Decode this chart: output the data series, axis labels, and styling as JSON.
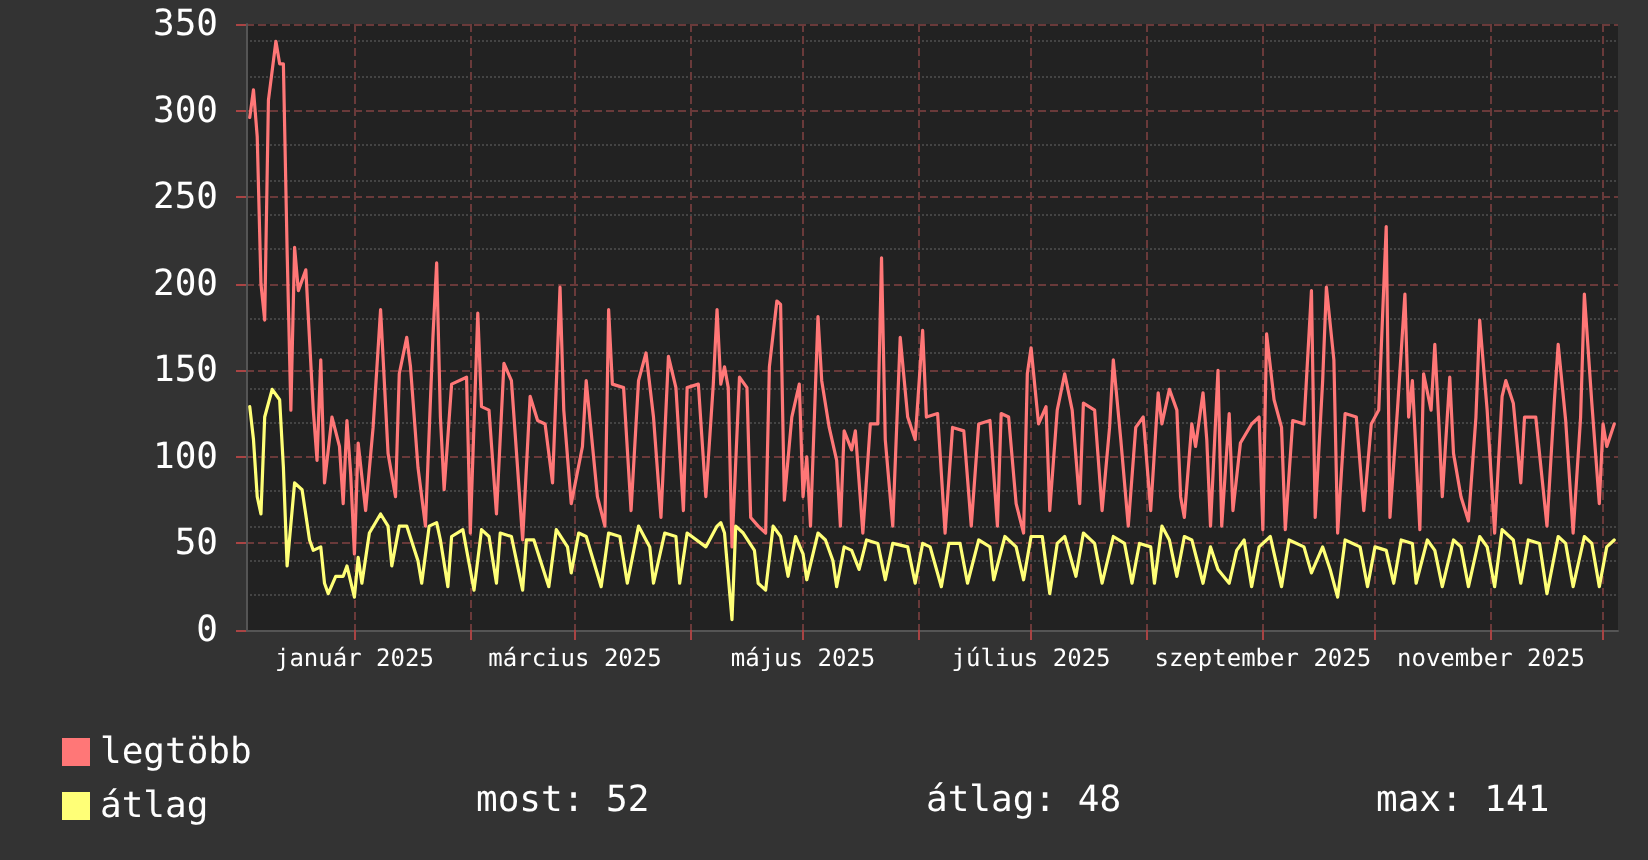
{
  "chart_data": {
    "type": "line",
    "xlim": [
      "2024-12-03",
      "2025-12-05"
    ],
    "xticks": [
      {
        "value": "2025-01-01",
        "label": "január 2025"
      },
      {
        "value": "2025-02-01",
        "label": null
      },
      {
        "value": "2025-03-01",
        "label": "március 2025"
      },
      {
        "value": "2025-04-01",
        "label": null
      },
      {
        "value": "2025-05-01",
        "label": "május 2025"
      },
      {
        "value": "2025-06-01",
        "label": null
      },
      {
        "value": "2025-07-01",
        "label": "július 2025"
      },
      {
        "value": "2025-08-01",
        "label": null
      },
      {
        "value": "2025-09-01",
        "label": "szeptember 2025"
      },
      {
        "value": "2025-10-01",
        "label": null
      },
      {
        "value": "2025-11-01",
        "label": "november 2025"
      },
      {
        "value": "2025-12-01",
        "label": null
      }
    ],
    "ylim": [
      0,
      350
    ],
    "yticks": [
      0,
      50,
      100,
      150,
      200,
      250,
      300,
      350
    ],
    "grid": true,
    "legend": "bottom left",
    "marker": "none",
    "line_style": "solid",
    "annotations": [
      "most: 52",
      "átlag: 48",
      "max: 141"
    ],
    "series": [
      {
        "name": "legtöbb",
        "color": "#ff7777",
        "x": [
          "2024-12-04",
          "2024-12-05",
          "2024-12-06",
          "2024-12-07",
          "2024-12-08",
          "2024-12-09",
          "2024-12-11",
          "2024-12-12",
          "2024-12-13",
          "2024-12-14",
          "2024-12-15",
          "2024-12-16",
          "2024-12-17",
          "2024-12-19",
          "2024-12-21",
          "2024-12-22",
          "2024-12-23",
          "2024-12-24",
          "2024-12-26",
          "2024-12-28",
          "2024-12-29",
          "2024-12-30",
          "2024-12-31",
          "2025-01-01",
          "2025-01-02",
          "2025-01-04",
          "2025-01-06",
          "2025-01-08",
          "2025-01-10",
          "2025-01-12",
          "2025-01-13",
          "2025-01-15",
          "2025-01-16",
          "2025-01-18",
          "2025-01-20",
          "2025-01-22",
          "2025-01-23",
          "2025-01-24",
          "2025-01-25",
          "2025-01-27",
          "2025-01-31",
          "2025-02-01",
          "2025-02-03",
          "2025-02-04",
          "2025-02-06",
          "2025-02-08",
          "2025-02-10",
          "2025-02-12",
          "2025-02-15",
          "2025-02-17",
          "2025-02-19",
          "2025-02-21",
          "2025-02-23",
          "2025-02-25",
          "2025-02-26",
          "2025-02-28",
          "2025-03-03",
          "2025-03-04",
          "2025-03-07",
          "2025-03-09",
          "2025-03-10",
          "2025-03-11",
          "2025-03-14",
          "2025-03-16",
          "2025-03-18",
          "2025-03-20",
          "2025-03-22",
          "2025-03-24",
          "2025-03-26",
          "2025-03-28",
          "2025-03-30",
          "2025-03-31",
          "2025-04-03",
          "2025-04-05",
          "2025-04-07",
          "2025-04-08",
          "2025-04-09",
          "2025-04-10",
          "2025-04-11",
          "2025-04-12",
          "2025-04-14",
          "2025-04-16",
          "2025-04-17",
          "2025-04-19",
          "2025-04-21",
          "2025-04-22",
          "2025-04-24",
          "2025-04-25",
          "2025-04-26",
          "2025-04-28",
          "2025-04-30",
          "2025-05-01",
          "2025-05-02",
          "2025-05-03",
          "2025-05-05",
          "2025-05-06",
          "2025-05-08",
          "2025-05-10",
          "2025-05-11",
          "2025-05-12",
          "2025-05-14",
          "2025-05-15",
          "2025-05-17",
          "2025-05-19",
          "2025-05-21",
          "2025-05-22",
          "2025-05-23",
          "2025-05-25",
          "2025-05-27",
          "2025-05-29",
          "2025-05-31",
          "2025-06-02",
          "2025-06-03",
          "2025-06-06",
          "2025-06-08",
          "2025-06-10",
          "2025-06-13",
          "2025-06-15",
          "2025-06-17",
          "2025-06-20",
          "2025-06-22",
          "2025-06-23",
          "2025-06-25",
          "2025-06-27",
          "2025-06-29",
          "2025-06-30",
          "2025-07-01",
          "2025-07-03",
          "2025-07-05",
          "2025-07-06",
          "2025-07-08",
          "2025-07-10",
          "2025-07-12",
          "2025-07-14",
          "2025-07-15",
          "2025-07-18",
          "2025-07-20",
          "2025-07-22",
          "2025-07-23",
          "2025-07-25",
          "2025-07-27",
          "2025-07-29",
          "2025-07-31",
          "2025-08-02",
          "2025-08-04",
          "2025-08-05",
          "2025-08-07",
          "2025-08-09",
          "2025-08-10",
          "2025-08-11",
          "2025-08-13",
          "2025-08-14",
          "2025-08-16",
          "2025-08-17",
          "2025-08-18",
          "2025-08-20",
          "2025-08-21",
          "2025-08-23",
          "2025-08-24",
          "2025-08-26",
          "2025-08-29",
          "2025-08-31",
          "2025-09-01",
          "2025-09-02",
          "2025-09-04",
          "2025-09-06",
          "2025-09-07",
          "2025-09-09",
          "2025-09-12",
          "2025-09-14",
          "2025-09-15",
          "2025-09-17",
          "2025-09-18",
          "2025-09-20",
          "2025-09-21",
          "2025-09-23",
          "2025-09-26",
          "2025-09-28",
          "2025-09-30",
          "2025-10-02",
          "2025-10-04",
          "2025-10-05",
          "2025-10-07",
          "2025-10-09",
          "2025-10-10",
          "2025-10-11",
          "2025-10-13",
          "2025-10-14",
          "2025-10-16",
          "2025-10-17",
          "2025-10-18",
          "2025-10-19",
          "2025-10-21",
          "2025-10-22",
          "2025-10-24",
          "2025-10-26",
          "2025-10-28",
          "2025-10-29",
          "2025-10-31",
          "2025-11-02",
          "2025-11-04",
          "2025-11-05",
          "2025-11-07",
          "2025-11-09",
          "2025-11-10",
          "2025-11-13",
          "2025-11-15",
          "2025-11-16",
          "2025-11-18",
          "2025-11-19",
          "2025-11-21",
          "2025-11-23",
          "2025-11-25",
          "2025-11-26",
          "2025-11-28",
          "2025-11-30",
          "2025-12-01",
          "2025-12-02",
          "2025-12-04"
        ],
        "values": [
          296,
          312,
          285,
          200,
          179,
          306,
          340,
          327,
          327,
          219,
          127,
          221,
          196,
          208,
          127,
          98,
          156,
          85,
          123,
          106,
          73,
          121,
          90,
          44,
          108,
          69,
          117,
          185,
          102,
          77,
          148,
          169,
          152,
          94,
          60,
          169,
          212,
          123,
          81,
          142,
          146,
          56,
          183,
          129,
          127,
          67,
          154,
          144,
          52,
          135,
          121,
          119,
          85,
          198,
          127,
          73,
          106,
          144,
          77,
          60,
          185,
          142,
          140,
          69,
          144,
          160,
          123,
          65,
          158,
          140,
          69,
          140,
          142,
          77,
          142,
          185,
          142,
          152,
          140,
          48,
          146,
          140,
          65,
          60,
          56,
          152,
          190,
          188,
          75,
          123,
          142,
          77,
          100,
          60,
          181,
          144,
          117,
          98,
          60,
          115,
          104,
          115,
          56,
          119,
          119,
          215,
          110,
          60,
          169,
          123,
          110,
          173,
          123,
          125,
          56,
          117,
          115,
          60,
          119,
          121,
          60,
          125,
          123,
          73,
          56,
          148,
          163,
          119,
          129,
          69,
          127,
          148,
          127,
          73,
          131,
          127,
          69,
          117,
          156,
          110,
          60,
          117,
          123,
          69,
          137,
          119,
          139,
          127,
          77,
          65,
          119,
          106,
          137,
          110,
          60,
          150,
          60,
          125,
          69,
          108,
          119,
          123,
          58,
          171,
          133,
          117,
          58,
          121,
          119,
          196,
          65,
          144,
          198,
          156,
          56,
          125,
          123,
          69,
          119,
          127,
          233,
          65,
          127,
          194,
          123,
          144,
          58,
          148,
          127,
          165,
          123,
          77,
          146,
          102,
          77,
          63,
          123,
          179,
          127,
          56,
          135,
          144,
          131,
          85,
          123,
          123,
          81,
          60,
          133,
          165,
          121,
          56,
          123,
          194,
          131,
          73,
          119,
          106,
          119
        ]
      },
      {
        "name": "átlag",
        "color": "#ffff77",
        "x": [
          "2024-12-04",
          "2024-12-05",
          "2024-12-06",
          "2024-12-07",
          "2024-12-08",
          "2024-12-10",
          "2024-12-12",
          "2024-12-13",
          "2024-12-14",
          "2024-12-16",
          "2024-12-18",
          "2024-12-20",
          "2024-12-21",
          "2024-12-23",
          "2024-12-24",
          "2024-12-25",
          "2024-12-27",
          "2024-12-29",
          "2024-12-30",
          "2025-01-01",
          "2025-01-02",
          "2025-01-03",
          "2025-01-05",
          "2025-01-08",
          "2025-01-10",
          "2025-01-11",
          "2025-01-13",
          "2025-01-15",
          "2025-01-18",
          "2025-01-19",
          "2025-01-21",
          "2025-01-23",
          "2025-01-24",
          "2025-01-26",
          "2025-01-27",
          "2025-01-30",
          "2025-02-02",
          "2025-02-04",
          "2025-02-06",
          "2025-02-08",
          "2025-02-09",
          "2025-02-12",
          "2025-02-15",
          "2025-02-16",
          "2025-02-18",
          "2025-02-22",
          "2025-02-24",
          "2025-02-27",
          "2025-02-28",
          "2025-03-02",
          "2025-03-04",
          "2025-03-08",
          "2025-03-10",
          "2025-03-13",
          "2025-03-15",
          "2025-03-18",
          "2025-03-21",
          "2025-03-22",
          "2025-03-25",
          "2025-03-28",
          "2025-03-29",
          "2025-03-31",
          "2025-04-05",
          "2025-04-08",
          "2025-04-09",
          "2025-04-10",
          "2025-04-12",
          "2025-04-13",
          "2025-04-15",
          "2025-04-18",
          "2025-04-19",
          "2025-04-21",
          "2025-04-23",
          "2025-04-25",
          "2025-04-27",
          "2025-04-29",
          "2025-05-01",
          "2025-05-02",
          "2025-05-05",
          "2025-05-07",
          "2025-05-09",
          "2025-05-10",
          "2025-05-12",
          "2025-05-14",
          "2025-05-16",
          "2025-05-18",
          "2025-05-21",
          "2025-05-23",
          "2025-05-25",
          "2025-05-29",
          "2025-05-31",
          "2025-06-02",
          "2025-06-04",
          "2025-06-07",
          "2025-06-09",
          "2025-06-12",
          "2025-06-14",
          "2025-06-17",
          "2025-06-20",
          "2025-06-21",
          "2025-06-24",
          "2025-06-27",
          "2025-06-29",
          "2025-07-01",
          "2025-07-04",
          "2025-07-06",
          "2025-07-08",
          "2025-07-10",
          "2025-07-13",
          "2025-07-15",
          "2025-07-18",
          "2025-07-20",
          "2025-07-23",
          "2025-07-26",
          "2025-07-28",
          "2025-07-30",
          "2025-08-02",
          "2025-08-03",
          "2025-08-05",
          "2025-08-07",
          "2025-08-09",
          "2025-08-11",
          "2025-08-13",
          "2025-08-16",
          "2025-08-18",
          "2025-08-20",
          "2025-08-23",
          "2025-08-25",
          "2025-08-27",
          "2025-08-29",
          "2025-08-31",
          "2025-09-03",
          "2025-09-06",
          "2025-09-08",
          "2025-09-12",
          "2025-09-14",
          "2025-09-17",
          "2025-09-19",
          "2025-09-21",
          "2025-09-23",
          "2025-09-27",
          "2025-09-29",
          "2025-10-01",
          "2025-10-04",
          "2025-10-06",
          "2025-10-08",
          "2025-10-11",
          "2025-10-12",
          "2025-10-15",
          "2025-10-17",
          "2025-10-19",
          "2025-10-22",
          "2025-10-24",
          "2025-10-26",
          "2025-10-29",
          "2025-10-31",
          "2025-11-02",
          "2025-11-04",
          "2025-11-07",
          "2025-11-09",
          "2025-11-11",
          "2025-11-14",
          "2025-11-16",
          "2025-11-19",
          "2025-11-21",
          "2025-11-23",
          "2025-11-26",
          "2025-11-28",
          "2025-11-30",
          "2025-12-02",
          "2025-12-04"
        ],
        "values": [
          129,
          110,
          77,
          67,
          123,
          139,
          133,
          94,
          37,
          85,
          81,
          52,
          46,
          48,
          27,
          21,
          31,
          31,
          37,
          19,
          42,
          27,
          56,
          67,
          60,
          37,
          60,
          60,
          40,
          27,
          60,
          62,
          52,
          25,
          54,
          58,
          23,
          58,
          54,
          27,
          56,
          54,
          23,
          52,
          52,
          25,
          58,
          48,
          33,
          56,
          54,
          25,
          56,
          54,
          27,
          60,
          48,
          27,
          56,
          54,
          27,
          56,
          48,
          60,
          62,
          56,
          6,
          60,
          56,
          46,
          27,
          23,
          60,
          54,
          31,
          54,
          44,
          29,
          56,
          52,
          40,
          25,
          48,
          46,
          35,
          52,
          50,
          29,
          50,
          48,
          27,
          50,
          48,
          25,
          50,
          50,
          27,
          52,
          48,
          29,
          54,
          48,
          29,
          54,
          54,
          21,
          50,
          54,
          31,
          56,
          50,
          27,
          54,
          50,
          27,
          50,
          48,
          27,
          60,
          52,
          31,
          54,
          52,
          27,
          48,
          35,
          27,
          46,
          52,
          25,
          48,
          54,
          25,
          52,
          48,
          33,
          48,
          35,
          19,
          52,
          48,
          25,
          48,
          46,
          27,
          52,
          50,
          27,
          52,
          46,
          25,
          52,
          48,
          25,
          54,
          48,
          25,
          58,
          52,
          27,
          52,
          50,
          21,
          54,
          50,
          25,
          54,
          50,
          25,
          48,
          52
        ]
      }
    ]
  }
}
